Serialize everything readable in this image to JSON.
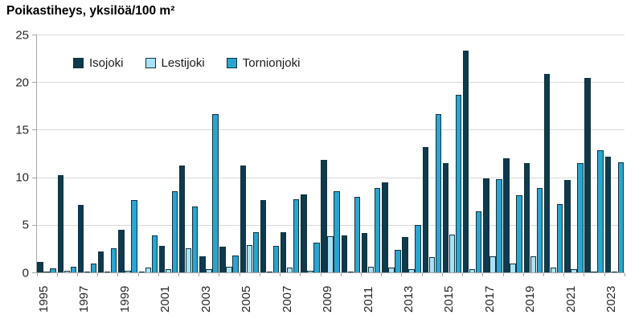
{
  "chart_data": {
    "type": "bar",
    "title": "Poikastiheys, yksilöä/100 m²",
    "ylabel": "",
    "xlabel": "",
    "ylim": [
      0,
      25
    ],
    "yticks": [
      0,
      5,
      10,
      15,
      20,
      25
    ],
    "grid": true,
    "legend_position": "top-left",
    "categories": [
      1995,
      1996,
      1997,
      1998,
      1999,
      2000,
      2001,
      2002,
      2003,
      2004,
      2005,
      2006,
      2007,
      2008,
      2009,
      2010,
      2011,
      2012,
      2013,
      2014,
      2015,
      2016,
      2017,
      2018,
      2019,
      2020,
      2021,
      2022,
      2023
    ],
    "x_tick_labels": [
      "1995",
      "1997",
      "1999",
      "2001",
      "2003",
      "2005",
      "2007",
      "2009",
      "2011",
      "2013",
      "2015",
      "2017",
      "2019",
      "2021",
      "2023"
    ],
    "series": [
      {
        "name": "Isojoki",
        "color": "#0e3a4d",
        "values": [
          1.1,
          10.2,
          7.1,
          2.2,
          4.5,
          0.1,
          2.8,
          11.2,
          1.7,
          2.7,
          11.2,
          7.6,
          4.2,
          8.2,
          11.8,
          3.9,
          4.1,
          9.5,
          3.7,
          13.2,
          11.5,
          23.3,
          9.9,
          12.0,
          11.5,
          20.9,
          9.7,
          20.4,
          12.2
        ]
      },
      {
        "name": "Lestijoki",
        "color": "#a9e1f5",
        "values": [
          0.1,
          0.2,
          0.1,
          0.1,
          0.2,
          0.5,
          0.3,
          2.5,
          0.3,
          0.6,
          2.9,
          0.1,
          0.5,
          0.2,
          3.8,
          0.1,
          0.6,
          0.5,
          0.3,
          1.6,
          4.0,
          0.3,
          1.7,
          0.9,
          1.7,
          0.5,
          0.3,
          0.1,
          0.1
        ]
      },
      {
        "name": "Tornionjoki",
        "color": "#2aa5cf",
        "values": [
          0.4,
          0.6,
          0.9,
          2.5,
          7.6,
          3.9,
          8.5,
          6.9,
          16.6,
          1.8,
          4.2,
          2.8,
          7.7,
          3.1,
          8.5,
          7.9,
          8.9,
          2.4,
          5.0,
          16.6,
          18.7,
          6.4,
          9.8,
          8.1,
          8.9,
          7.2,
          11.5,
          12.8,
          11.6
        ]
      }
    ],
    "gridline_color": "#d9d9d9",
    "axis_color": "#a6a6a6",
    "text_color": "#262626"
  }
}
